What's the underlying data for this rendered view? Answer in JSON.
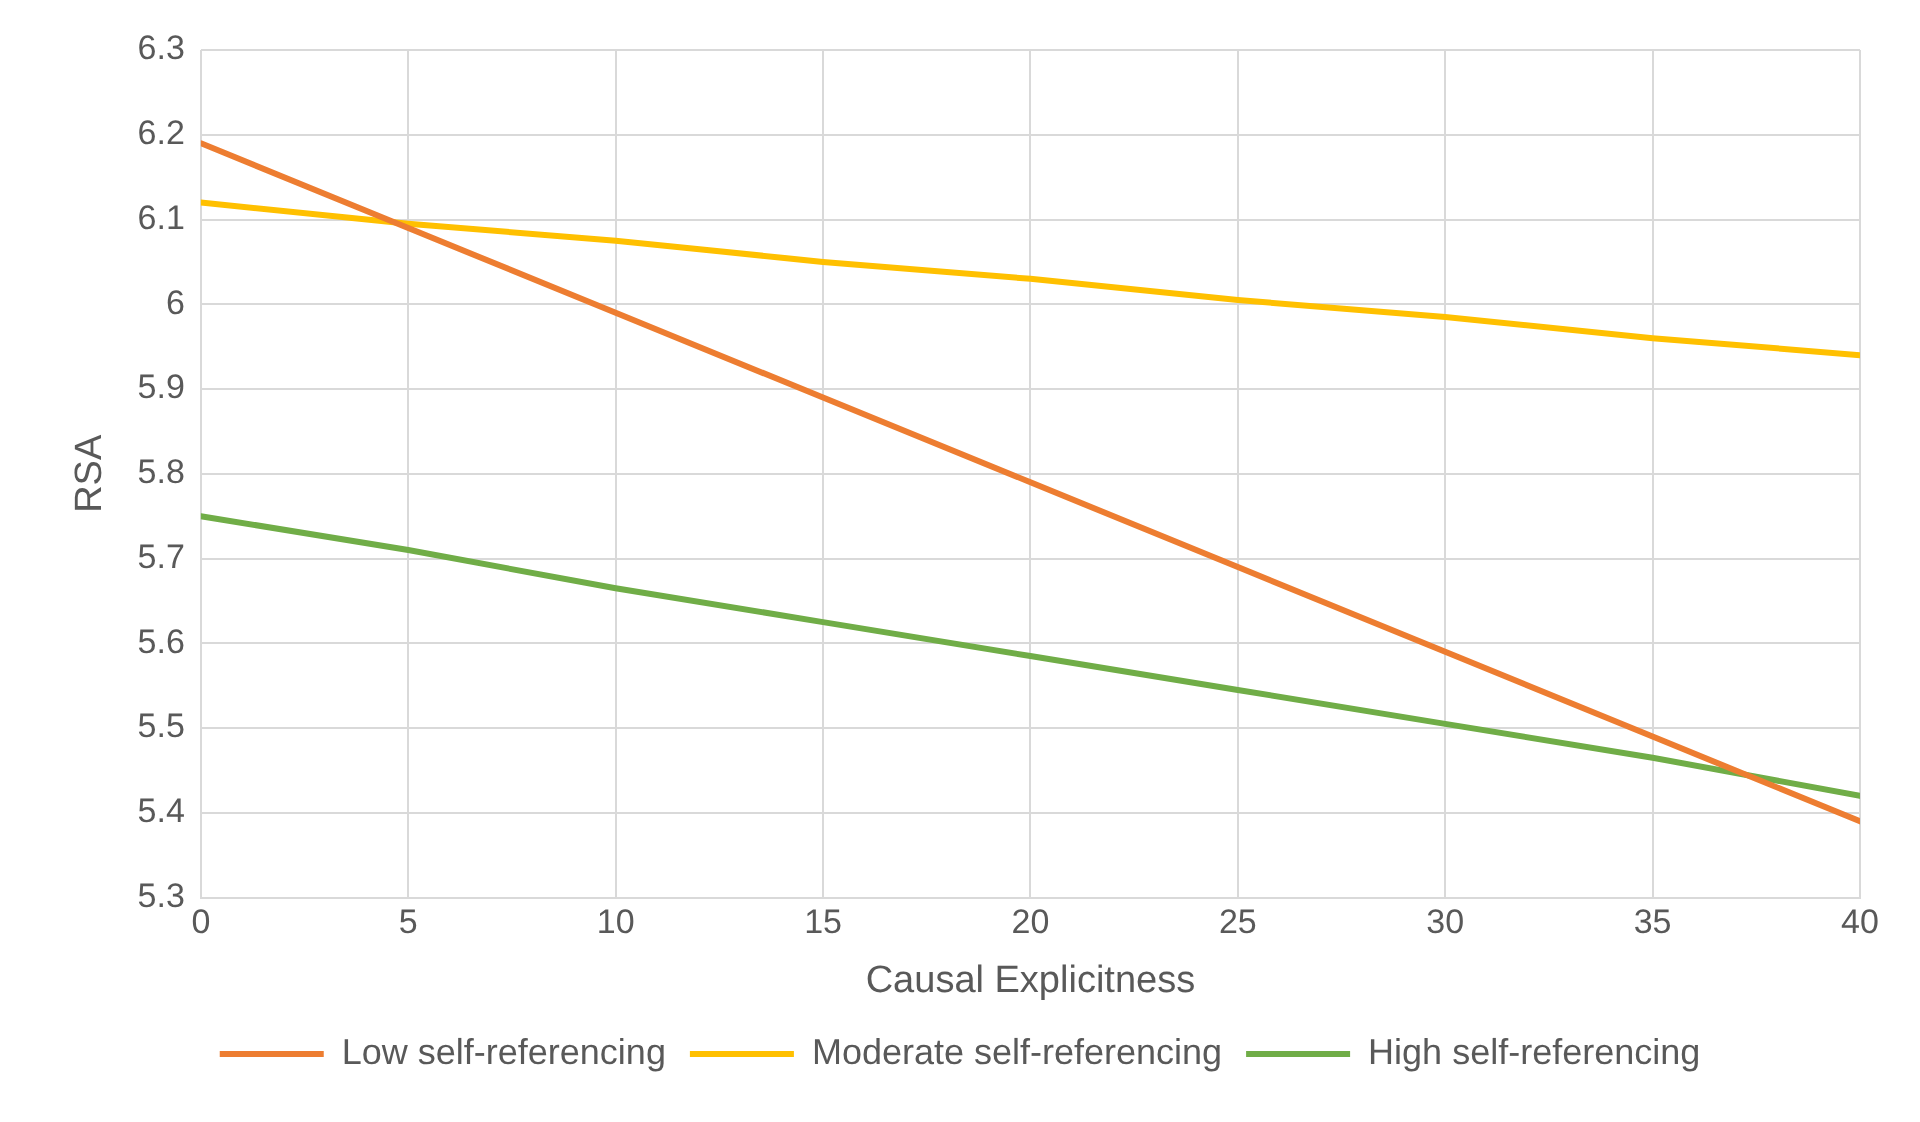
{
  "chart_data": {
    "type": "line",
    "xlabel": "Causal Explicitness",
    "ylabel": "RSA",
    "x": [
      0,
      5,
      10,
      15,
      20,
      25,
      30,
      35,
      40
    ],
    "series": [
      {
        "name": "Low self-referencing",
        "color": "#ed7d31",
        "values": [
          6.19,
          6.09,
          5.99,
          5.89,
          5.79,
          5.69,
          5.59,
          5.49,
          5.39
        ]
      },
      {
        "name": "Moderate self-referencing",
        "color": "#ffc000",
        "values": [
          6.12,
          6.095,
          6.075,
          6.05,
          6.03,
          6.005,
          5.985,
          5.96,
          5.94
        ]
      },
      {
        "name": "High self-referencing",
        "color": "#70ad47",
        "values": [
          5.75,
          5.71,
          5.665,
          5.625,
          5.585,
          5.545,
          5.505,
          5.465,
          5.42
        ]
      }
    ],
    "xlim": [
      0,
      40
    ],
    "xticks": [
      0,
      5,
      10,
      15,
      20,
      25,
      30,
      35,
      40
    ],
    "ylim": [
      5.3,
      6.3
    ],
    "yticks": [
      5.3,
      5.4,
      5.5,
      5.6,
      5.7,
      5.8,
      5.9,
      6,
      6.1,
      6.2,
      6.3
    ],
    "grid": true,
    "legend": "bottom",
    "marker": "none",
    "line_style": "solid"
  }
}
